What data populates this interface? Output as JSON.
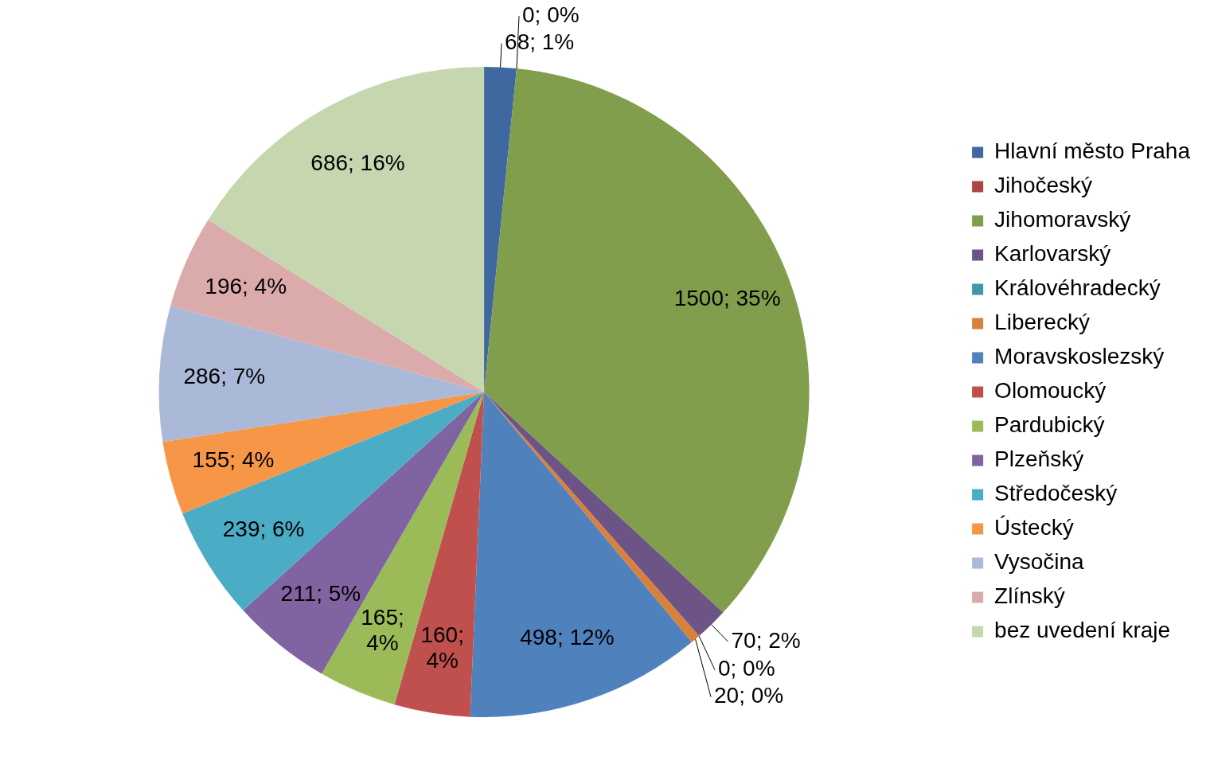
{
  "chart_data": {
    "type": "pie",
    "categories": [
      "Hlavní město Praha",
      "Jihočeský",
      "Jihomoravský",
      "Karlovarský",
      "Královéhradecký",
      "Liberecký",
      "Moravskoslezský",
      "Olomoucký",
      "Pardubický",
      "Plzeňský",
      "Středočeský",
      "Ústecký",
      "Vysočina",
      "Zlínský",
      "bez uvedení kraje"
    ],
    "values": [
      68,
      0,
      1500,
      70,
      0,
      20,
      498,
      160,
      165,
      211,
      239,
      155,
      286,
      196,
      686
    ],
    "value_labels": [
      "68; 1%",
      "0; 0%",
      "1500; 35%",
      "70; 2%",
      "0; 0%",
      "20; 0%",
      "498; 12%",
      "160; 4%",
      "165; 4%",
      "211; 5%",
      "239; 6%",
      "155; 4%",
      "286; 7%",
      "196; 4%",
      "686; 16%"
    ],
    "colors": [
      "#4068a0",
      "#aa4643",
      "#809e4b",
      "#6d5487",
      "#3f97ab",
      "#d8813b",
      "#4f81bd",
      "#c0504d",
      "#9bbb59",
      "#8064a2",
      "#4bacc6",
      "#f79646",
      "#aab9d8",
      "#dbaaab",
      "#c6d6ae"
    ],
    "legend": "right",
    "data_labels": true
  }
}
